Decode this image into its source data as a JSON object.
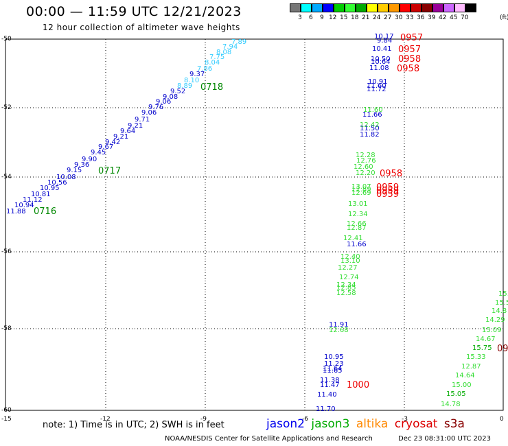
{
  "title": "00:00 — 11:59 UTC 12/21/2023",
  "subtitle": "12 hour collection of altimeter wave heights",
  "colorbar": {
    "colors": [
      "#777777",
      "#00ffff",
      "#00aaff",
      "#0000ff",
      "#00cc00",
      "#33ff33",
      "#00aa00",
      "#ffff00",
      "#ffcc00",
      "#ff9900",
      "#ff0000",
      "#cc0000",
      "#880000",
      "#990099",
      "#cc66ff",
      "#ffbbff",
      "#000000"
    ],
    "labels": [
      "3",
      "6",
      "9",
      "12",
      "15",
      "18",
      "21",
      "24",
      "27",
      "30",
      "33",
      "36",
      "39",
      "42",
      "45",
      "70",
      "(ft)"
    ]
  },
  "axes": {
    "y_ticks": [
      "-50",
      "-52",
      "-54",
      "-56",
      "-58",
      "-60"
    ],
    "x_ticks": [
      "-15",
      "-12",
      "-9",
      "-6",
      "-3",
      "0"
    ]
  },
  "swh_values": [
    [
      "7.89",
      "#33ccff"
    ],
    [
      "7.94",
      "#33ccff"
    ],
    [
      "8.08",
      "#33ccff"
    ],
    [
      "7.75",
      "#33ccff"
    ],
    [
      "8.04",
      "#33ccff"
    ],
    [
      "7.86",
      "#33ccff"
    ],
    [
      "9.37",
      "#0000cc"
    ],
    [
      "8.10",
      "#33ccff"
    ],
    [
      "8.89",
      "#33ccff"
    ],
    [
      "9.52",
      "#0000cc"
    ],
    [
      "9.08",
      "#0000cc"
    ],
    [
      "9.06",
      "#0000cc"
    ],
    [
      "9.76",
      "#0000cc"
    ],
    [
      "9.06",
      "#0000cc"
    ],
    [
      "9.71",
      "#0000cc"
    ],
    [
      "9.21",
      "#0000cc"
    ],
    [
      "9.64",
      "#0000cc"
    ],
    [
      "9.21",
      "#0000cc"
    ],
    [
      "9.42",
      "#0000cc"
    ],
    [
      "9.67",
      "#0000cc"
    ],
    [
      "9.45",
      "#0000cc"
    ],
    [
      "9.90",
      "#0000cc"
    ],
    [
      "9.36",
      "#0000cc"
    ],
    [
      "9.15",
      "#0000cc"
    ],
    [
      "10.08",
      "#0000cc"
    ],
    [
      "10.56",
      "#0000cc"
    ],
    [
      "10.95",
      "#0000cc"
    ],
    [
      "10.81",
      "#0000cc"
    ],
    [
      "11.12",
      "#0000cc"
    ],
    [
      "10.94",
      "#0000cc"
    ],
    [
      "11.88",
      "#0000cc"
    ],
    [
      "10.17",
      "#0000cc"
    ],
    [
      "9.84",
      "#0000cc"
    ],
    [
      "10.41",
      "#0000cc"
    ],
    [
      "10.50",
      "#0000cc"
    ],
    [
      "10.64",
      "#0000cc"
    ],
    [
      "11.08",
      "#0000cc"
    ],
    [
      "10.91",
      "#0000cc"
    ],
    [
      "11.60",
      "#0000cc"
    ],
    [
      "11.72",
      "#0000cc"
    ],
    [
      "11.60",
      "#33dd33"
    ],
    [
      "11.66",
      "#0000cc"
    ],
    [
      "12.42",
      "#33dd33"
    ],
    [
      "11.50",
      "#0000cc"
    ],
    [
      "11.82",
      "#0000cc"
    ],
    [
      "12.28",
      "#33dd33"
    ],
    [
      "12.76",
      "#33dd33"
    ],
    [
      "12.60",
      "#33dd33"
    ],
    [
      "12.20",
      "#33dd33"
    ],
    [
      "13.07",
      "#33dd33"
    ],
    [
      "12.89",
      "#33dd33"
    ],
    [
      "12.69",
      "#33dd33"
    ],
    [
      "13.01",
      "#33dd33"
    ],
    [
      "12.34",
      "#33dd33"
    ],
    [
      "12.66",
      "#33dd33"
    ],
    [
      "12.87",
      "#33dd33"
    ],
    [
      "12.41",
      "#33dd33"
    ],
    [
      "11.66",
      "#0000cc"
    ],
    [
      "12.40",
      "#33dd33"
    ],
    [
      "13.10",
      "#33dd33"
    ],
    [
      "12.27",
      "#33dd33"
    ],
    [
      "12.74",
      "#33dd33"
    ],
    [
      "12.34",
      "#33dd33"
    ],
    [
      "12.85",
      "#33dd33"
    ],
    [
      "12.58",
      "#33dd33"
    ],
    [
      "11.91",
      "#0000cc"
    ],
    [
      "12.68",
      "#33dd33"
    ],
    [
      "10.95",
      "#0000cc"
    ],
    [
      "11.23",
      "#0000cc"
    ],
    [
      "11.64",
      "#0000cc"
    ],
    [
      "11.65",
      "#0000cc"
    ],
    [
      "11.38",
      "#0000cc"
    ],
    [
      "11.47",
      "#0000cc"
    ],
    [
      "11.40",
      "#0000cc"
    ],
    [
      "11.70",
      "#0000cc"
    ],
    [
      "15.",
      "#33dd33"
    ],
    [
      "15.5",
      "#33dd33"
    ],
    [
      "14.8",
      "#33dd33"
    ],
    [
      "14.29",
      "#33dd33"
    ],
    [
      "15.09",
      "#33dd33"
    ],
    [
      "14.67",
      "#33dd33"
    ],
    [
      "15.75",
      "#00aa00"
    ],
    [
      "15.33",
      "#33dd33"
    ],
    [
      "12.87",
      "#33dd33"
    ],
    [
      "14.64",
      "#33dd33"
    ],
    [
      "15.00",
      "#33dd33"
    ],
    [
      "15.05",
      "#00aa00"
    ],
    [
      "14.78",
      "#33dd33"
    ]
  ],
  "time_labels": [
    [
      "0718",
      "#008800"
    ],
    [
      "0717",
      "#008800"
    ],
    [
      "0716",
      "#008800"
    ],
    [
      "0957",
      "#ee0000"
    ],
    [
      "0957",
      "#ee0000"
    ],
    [
      "0958",
      "#ee0000"
    ],
    [
      "0958",
      "#ee0000"
    ],
    [
      "0958",
      "#ee0000"
    ],
    [
      "0959",
      "#ee0000"
    ],
    [
      "0959",
      "#ee0000"
    ],
    [
      "0959",
      "#ee0000"
    ],
    [
      "1000",
      "#ee0000"
    ],
    [
      "09",
      "#880000"
    ]
  ],
  "footer": {
    "note": "note: 1) Time is in UTC; 2) SWH is in feet",
    "legend": [
      [
        "jason2",
        "#0000ee"
      ],
      [
        "jason3",
        "#00aa00"
      ],
      [
        "altika",
        "#ff8800"
      ],
      [
        "cryosat",
        "#dd0000"
      ],
      [
        "s3a",
        "#880000"
      ]
    ],
    "credit": "NOAA/NESDIS Center for Satellite Applications and Research",
    "timestamp": "Dec 23 08:31:00 UTC 2023"
  }
}
